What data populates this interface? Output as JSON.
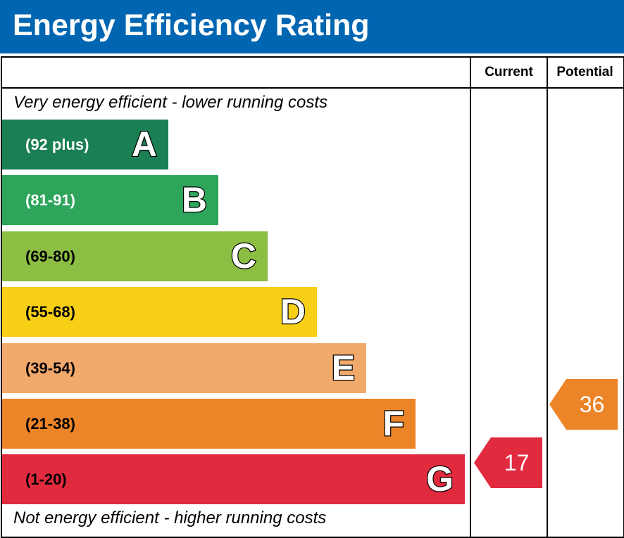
{
  "header": {
    "title": "Energy Efficiency Rating"
  },
  "columns": {
    "current": "Current",
    "potential": "Potential"
  },
  "captions": {
    "top": "Very energy efficient - lower running costs",
    "bottom": "Not energy efficient - higher running costs"
  },
  "chart_data": {
    "type": "bar",
    "title": "Energy Efficiency Rating",
    "bands": [
      {
        "letter": "A",
        "range": "(92 plus)",
        "color": "#1a7f52",
        "text_color": "#ffffff"
      },
      {
        "letter": "B",
        "range": "(81-91)",
        "color": "#2ea55b",
        "text_color": "#ffffff"
      },
      {
        "letter": "C",
        "range": "(69-80)",
        "color": "#8dbe44",
        "text_color": "#000000"
      },
      {
        "letter": "D",
        "range": "(55-68)",
        "color": "#f7cf17",
        "text_color": "#000000"
      },
      {
        "letter": "E",
        "range": "(39-54)",
        "color": "#f2a96c",
        "text_color": "#000000"
      },
      {
        "letter": "F",
        "range": "(21-38)",
        "color": "#ec8428",
        "text_color": "#000000"
      },
      {
        "letter": "G",
        "range": "(1-20)",
        "color": "#e22a3f",
        "text_color": "#000000"
      }
    ],
    "current": {
      "value": "17",
      "band": "G",
      "color": "#e22a3f"
    },
    "potential": {
      "value": "36",
      "band": "F",
      "color": "#ec8428"
    }
  }
}
